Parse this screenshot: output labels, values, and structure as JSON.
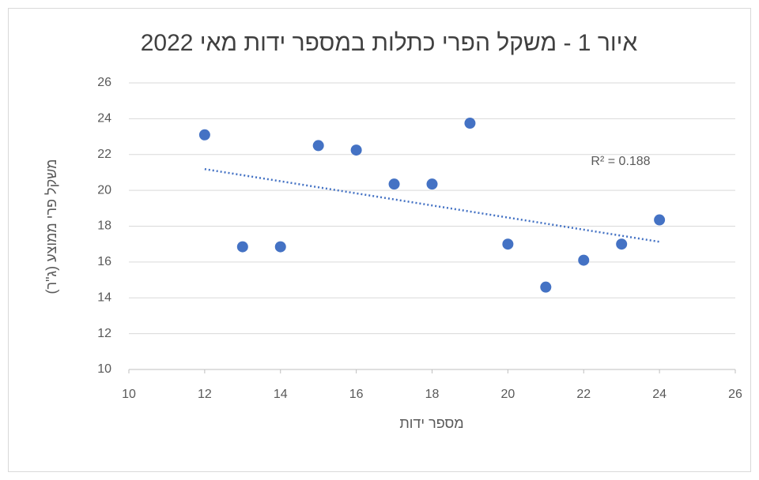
{
  "chart_data": {
    "type": "scatter",
    "title": "איור 1 - משקל הפרי כתלות במספר ידות מאי 2022",
    "x_label": "מספר ידות",
    "y_label": "משקל פרי ממוצע (ג\"ר)",
    "annotation": "R² = 0.188",
    "trendline": "linear",
    "grid": true,
    "series": [
      {
        "color": "#4472c4",
        "x": [
          12,
          13,
          14,
          15,
          16,
          17,
          18,
          19,
          20,
          21,
          22,
          23,
          24
        ],
        "values": [
          23.1,
          16.85,
          16.85,
          22.5,
          22.25,
          20.35,
          20.35,
          23.75,
          17.0,
          14.6,
          16.1,
          17.0,
          18.35
        ]
      }
    ],
    "xlim": [
      10,
      26
    ],
    "xticks": [
      10,
      12,
      14,
      16,
      18,
      20,
      22,
      24,
      26
    ],
    "ylim": [
      10,
      26
    ],
    "yticks": [
      10,
      12,
      14,
      16,
      18,
      20,
      22,
      24,
      26
    ]
  }
}
